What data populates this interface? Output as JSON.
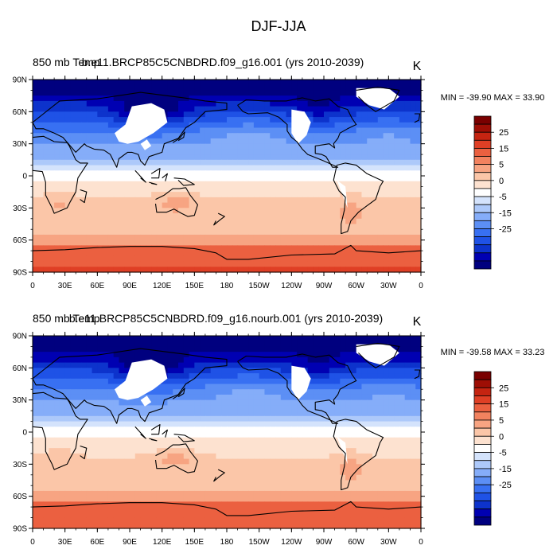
{
  "figure_title": "DJF-JJA",
  "colors": {
    "levels": [
      "#00007f",
      "#0000b2",
      "#0d33cc",
      "#1f52e6",
      "#3870f2",
      "#5c8ff5",
      "#85adf9",
      "#adc9fa",
      "#d4e3fc",
      "#ffffff",
      "#fde2d0",
      "#fbc6a8",
      "#f7a482",
      "#f2825f",
      "#eb6040",
      "#df3f25",
      "#c52411",
      "#9e0e05",
      "#7a0000"
    ],
    "land_missing": "#ffffff",
    "coast": "#000000"
  },
  "chart_data": [
    {
      "type": "heatmap",
      "title_left": "850 mb Temp",
      "title_center": "b.e11.BRCP85C5CNBDRD.f09_g16.001 (yrs 2010-2039)",
      "title_right": "K",
      "stats": "MIN = -39.90 MAX =  33.90",
      "min": -39.9,
      "max": 33.9,
      "x_ticks": [
        "0",
        "30E",
        "60E",
        "90E",
        "120E",
        "150E",
        "180",
        "150W",
        "120W",
        "90W",
        "60W",
        "30W",
        "0"
      ],
      "y_ticks": [
        "90N",
        "60N",
        "30N",
        "0",
        "30S",
        "60S",
        "90S"
      ],
      "colorbar_labels": [
        "25",
        "15",
        "5",
        "0",
        "-5",
        "-15",
        "-25"
      ],
      "xlim": [
        0,
        360
      ],
      "ylim": [
        -90,
        90
      ]
    },
    {
      "type": "heatmap",
      "title_left": "850 mb Temp",
      "title_center": "b.e11.BRCP85C5CNBDRD.f09_g16.nourb.001 (yrs 2010-2039)",
      "title_right": "K",
      "stats": "MIN = -39.58 MAX =  33.23",
      "min": -39.58,
      "max": 33.23,
      "x_ticks": [
        "0",
        "30E",
        "60E",
        "90E",
        "120E",
        "150E",
        "180",
        "150W",
        "120W",
        "90W",
        "60W",
        "30W",
        "0"
      ],
      "y_ticks": [
        "90N",
        "60N",
        "30N",
        "0",
        "30S",
        "60S",
        "90S"
      ],
      "colorbar_labels": [
        "25",
        "15",
        "5",
        "0",
        "-5",
        "-15",
        "-25"
      ],
      "xlim": [
        0,
        360
      ],
      "ylim": [
        -90,
        90
      ]
    }
  ]
}
